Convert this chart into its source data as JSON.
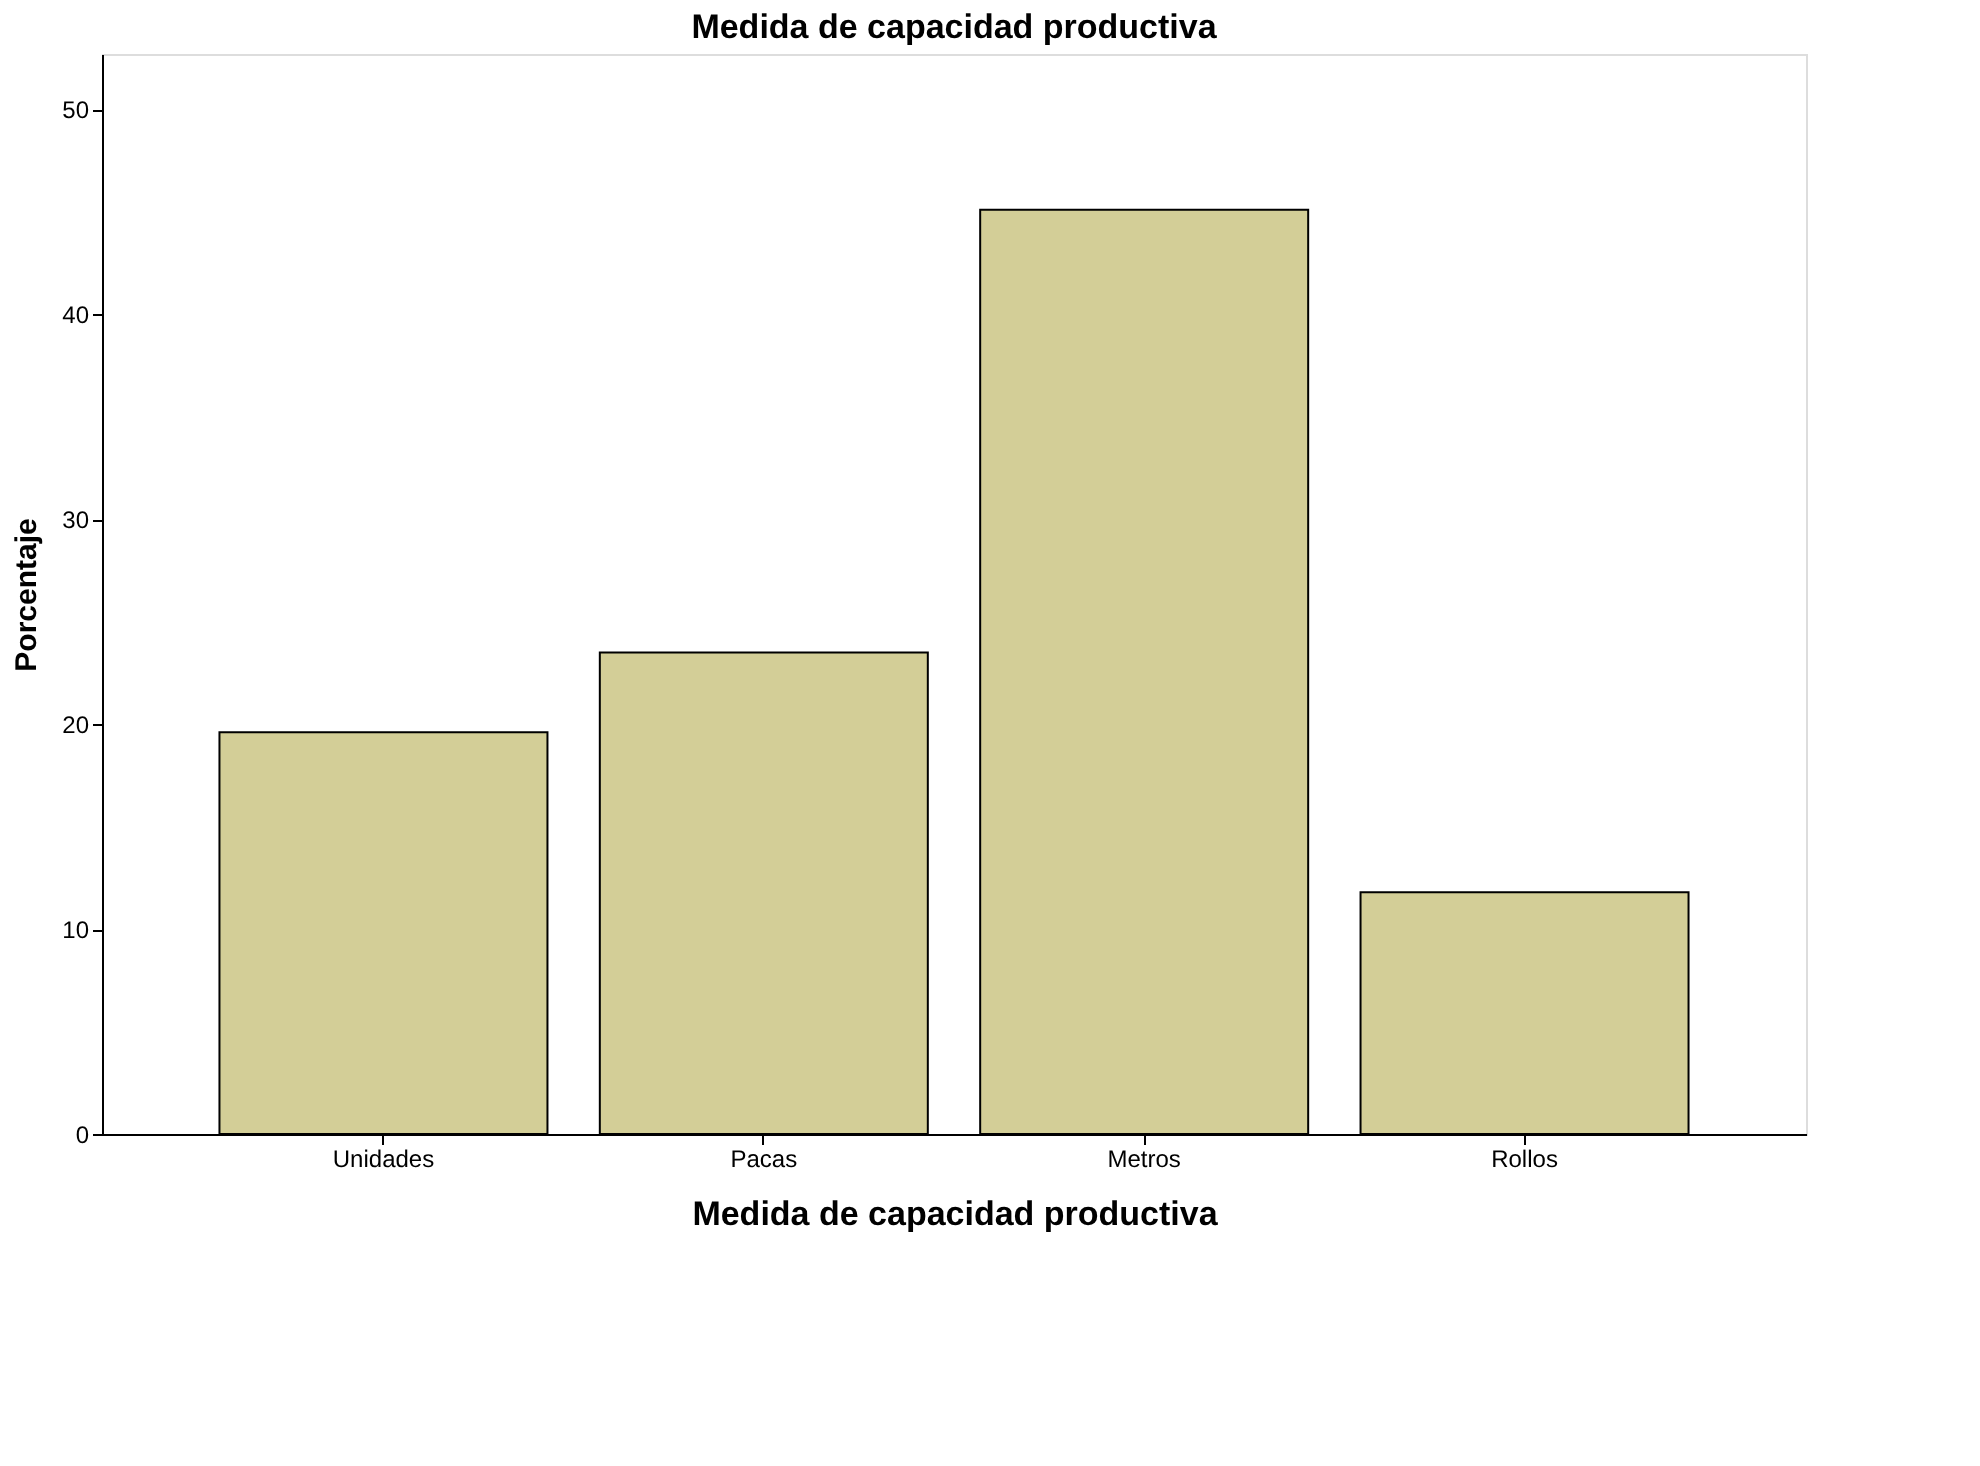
{
  "chart_data": {
    "type": "bar",
    "title": "Medida de capacidad productiva",
    "xlabel": "Medida de capacidad productiva",
    "ylabel": "Porcentaje",
    "categories": [
      "Unidades",
      "Pacas",
      "Metros",
      "Rollos"
    ],
    "values": [
      19.6,
      23.5,
      45.1,
      11.8
    ],
    "color": "#d3ce97",
    "ylim": [
      0,
      52.7
    ],
    "yticks": [
      0,
      10,
      20,
      30,
      40,
      50
    ],
    "grid": false
  }
}
